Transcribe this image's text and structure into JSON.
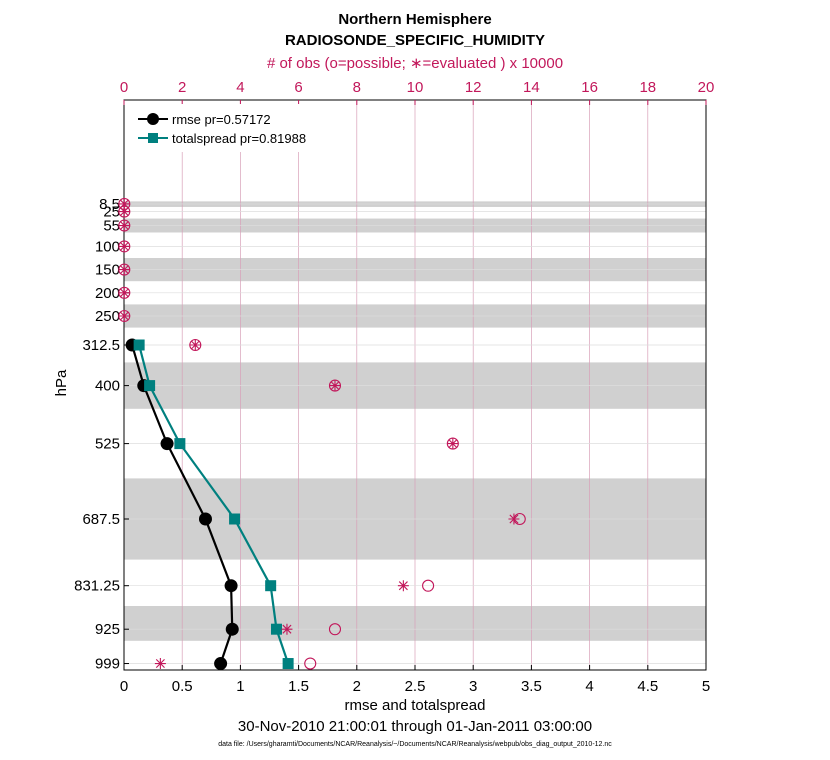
{
  "chart_data": {
    "type": "line",
    "title": "Northern Hemisphere",
    "subtitle": "RADIOSONDE_SPECIFIC_HUMIDITY",
    "top_axis_label": "# of obs (o=possible; ∗=evaluated ) x 10000",
    "xlabel": "rmse and totalspread",
    "ylabel": "hPa",
    "date_range": "30-Nov-2010 21:00:01 through 01-Jan-2011 03:00:00",
    "data_file": "data file: /Users/gharamti/Documents/NCAR/Reanalysis/~/Documents/NCAR/Reanalysis/webpub/obs_diag_output_2010-12.nc",
    "xlim": [
      0,
      5
    ],
    "x_ticks": [
      "0",
      "0.5",
      "1",
      "1.5",
      "2",
      "2.5",
      "3",
      "3.5",
      "4",
      "4.5",
      "5"
    ],
    "top_xlim": [
      0,
      20
    ],
    "top_ticks": [
      "0",
      "2",
      "4",
      "6",
      "8",
      "10",
      "12",
      "14",
      "16",
      "18",
      "20"
    ],
    "levels": [
      "8.5",
      "25",
      "55",
      "100",
      "150",
      "200",
      "250",
      "312.5",
      "400",
      "525",
      "687.5",
      "831.25",
      "925",
      "999"
    ],
    "level_values": [
      8.5,
      25,
      55,
      100,
      150,
      200,
      250,
      312.5,
      400,
      525,
      687.5,
      831.25,
      925,
      999
    ],
    "shaded_bands": [
      [
        3,
        15
      ],
      [
        40,
        70
      ],
      [
        125,
        175
      ],
      [
        225,
        275
      ],
      [
        350,
        450
      ],
      [
        600,
        775
      ],
      [
        875,
        950
      ]
    ],
    "series": [
      {
        "name": "rmse pr=0.57172",
        "color": "#000000",
        "marker": "circle",
        "levels": [
          312.5,
          400,
          525,
          687.5,
          831.25,
          925,
          999
        ],
        "values": [
          0.07,
          0.17,
          0.37,
          0.7,
          0.92,
          0.93,
          0.83
        ]
      },
      {
        "name": "totalspread pr=0.81988",
        "color": "#00807f",
        "marker": "square",
        "levels": [
          312.5,
          400,
          525,
          687.5,
          831.25,
          925,
          999
        ],
        "values": [
          0.13,
          0.22,
          0.48,
          0.95,
          1.26,
          1.31,
          1.41
        ]
      }
    ],
    "obs_possible": {
      "levels": [
        8.5,
        25,
        55,
        100,
        150,
        200,
        250,
        312.5,
        400,
        525,
        687.5,
        831.25,
        925,
        999
      ],
      "values": [
        0.01,
        0.01,
        0.01,
        0.01,
        0.01,
        0.01,
        0.01,
        2.45,
        7.25,
        11.3,
        13.6,
        10.45,
        7.25,
        6.4
      ]
    },
    "obs_evaluated": {
      "levels": [
        8.5,
        25,
        55,
        100,
        150,
        200,
        250,
        312.5,
        400,
        525,
        687.5,
        831.25,
        925,
        999
      ],
      "values": [
        0.01,
        0.01,
        0.01,
        0.01,
        0.01,
        0.01,
        0.01,
        2.45,
        7.25,
        11.3,
        13.4,
        9.6,
        5.6,
        1.25
      ]
    },
    "legend_position": "top-left",
    "colors": {
      "obs": "#c2185b",
      "band": "#d0d0d0",
      "grid_top": "#d8a0b8",
      "grid": "#dddddd"
    }
  }
}
